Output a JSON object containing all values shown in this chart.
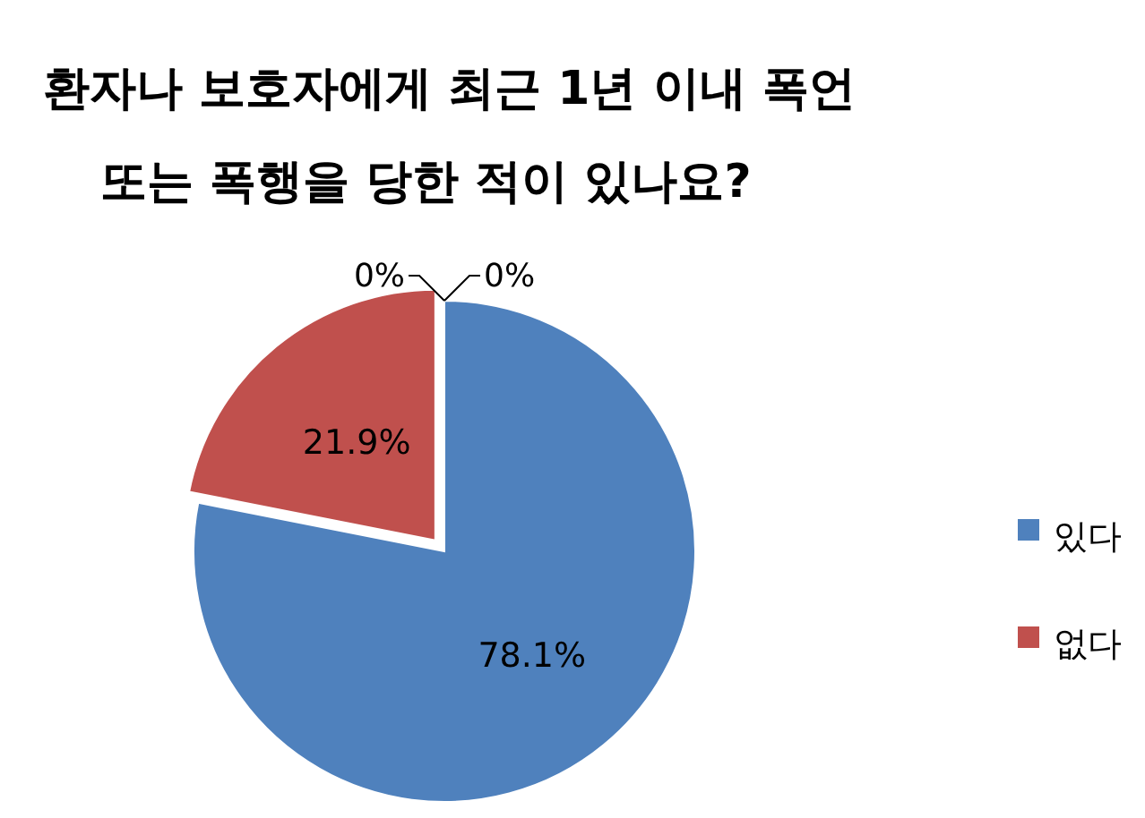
{
  "chart_data": {
    "type": "pie",
    "title": "환자나 보호자에게 최근 1년 이내 폭언\n또는 폭행을 당한 적이 있나요?",
    "categories": [
      "있다",
      "없다",
      null,
      null
    ],
    "values": [
      78.1,
      21.9,
      0,
      0
    ],
    "value_labels": [
      "78.1%",
      "21.9%",
      "0%",
      "0%"
    ],
    "colors": [
      "#4f81bd",
      "#c0504d",
      "#9bbb59",
      "#8064a2"
    ],
    "legend": "right"
  }
}
